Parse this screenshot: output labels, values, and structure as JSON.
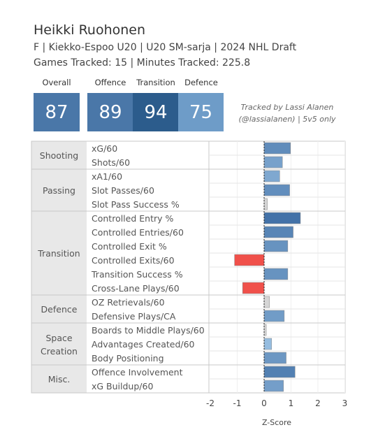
{
  "header": {
    "title": "Heikki Ruohonen",
    "subtitle_line1": "F | Kiekko-Espoo U20 | U20 SM-sarja | 2024 NHL Draft",
    "subtitle_line2": "Games Tracked: 15 | Minutes Tracked: 225.8"
  },
  "scores": {
    "overall": {
      "label": "Overall",
      "value": "87",
      "color": "#4a77a8"
    },
    "offence": {
      "label": "Offence",
      "value": "89",
      "color": "#4a77a8"
    },
    "transition": {
      "label": "Transition",
      "value": "94",
      "color": "#2c5c8c"
    },
    "defence": {
      "label": "Defence",
      "value": "75",
      "color": "#6e9cc8"
    }
  },
  "credit": {
    "line1": "Tracked by Lassi Alanen",
    "line2": "(@lassialanen) | 5v5 only"
  },
  "chart_data": {
    "type": "bar",
    "orientation": "horizontal",
    "xlabel": "Z-Score",
    "xlim": [
      -2,
      3
    ],
    "xticks": [
      "-2",
      "-1",
      "0",
      "1",
      "2",
      "3"
    ],
    "colors": {
      "positive_light": "#9cc3e4",
      "positive_dark": "#3f6ea5",
      "negative": "#f0504a",
      "neutral": "#d6d6d6"
    },
    "groups": [
      {
        "name": "Shooting",
        "metrics": [
          {
            "label": "xG/60",
            "value": 0.98
          },
          {
            "label": "Shots/60",
            "value": 0.68
          }
        ]
      },
      {
        "name": "Passing",
        "metrics": [
          {
            "label": "xA1/60",
            "value": 0.58
          },
          {
            "label": "Slot Passes/60",
            "value": 0.95
          },
          {
            "label": "Slot Pass Success %",
            "value": 0.12
          }
        ]
      },
      {
        "name": "Transition",
        "metrics": [
          {
            "label": "Controlled Entry %",
            "value": 1.35
          },
          {
            "label": "Controlled Entries/60",
            "value": 1.08
          },
          {
            "label": "Controlled Exit %",
            "value": 0.88
          },
          {
            "label": "Controlled Exits/60",
            "value": -1.1
          },
          {
            "label": "Transition Success %",
            "value": 0.88
          },
          {
            "label": "Cross-Lane Plays/60",
            "value": -0.8
          }
        ]
      },
      {
        "name": "Defence",
        "metrics": [
          {
            "label": "OZ Retrievals/60",
            "value": 0.2
          },
          {
            "label": "Defensive Plays/CA",
            "value": 0.75
          }
        ]
      },
      {
        "name": "Space Creation",
        "metrics": [
          {
            "label": "Boards to Middle Plays/60",
            "value": 0.08
          },
          {
            "label": "Advantages Created/60",
            "value": 0.28
          },
          {
            "label": "Body Positioning",
            "value": 0.82
          }
        ]
      },
      {
        "name": "Misc.",
        "metrics": [
          {
            "label": "Offence Involvement",
            "value": 1.15
          },
          {
            "label": "xG Buildup/60",
            "value": 0.72
          }
        ]
      }
    ]
  }
}
